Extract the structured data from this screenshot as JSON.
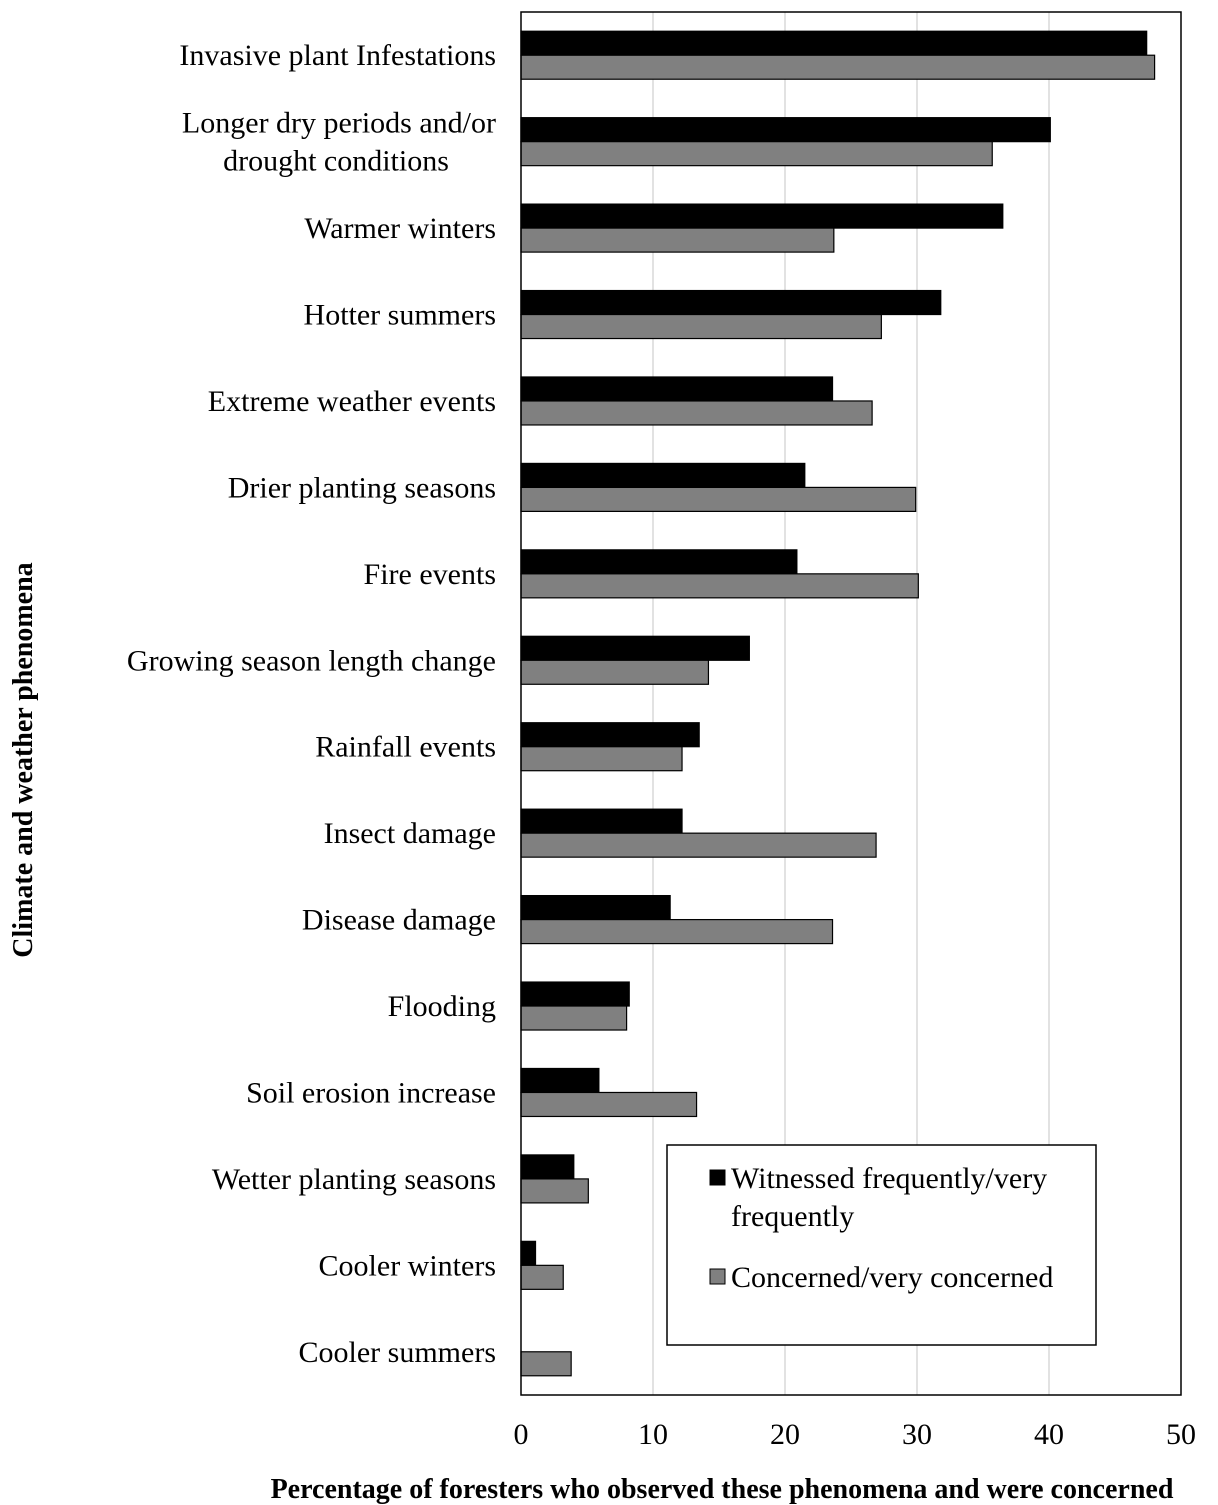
{
  "chart_data": {
    "type": "bar",
    "orientation": "horizontal",
    "title": "",
    "xlabel": "Percentage of foresters who observed these phenomena and were concerned",
    "ylabel": "Climate and weather phenomena",
    "xlim": [
      0,
      50
    ],
    "xticks": [
      0,
      10,
      20,
      30,
      40,
      50
    ],
    "grid": "vertical",
    "legend_position": "bottom-right",
    "categories": [
      [
        "Invasive plant Infestations"
      ],
      [
        "Longer dry periods and/or",
        "drought conditions"
      ],
      [
        "Warmer winters"
      ],
      [
        "Hotter summers"
      ],
      [
        "Extreme weather events"
      ],
      [
        "Drier planting seasons"
      ],
      [
        "Fire events"
      ],
      [
        "Growing season length change"
      ],
      [
        "Rainfall events"
      ],
      [
        "Insect damage"
      ],
      [
        "Disease damage"
      ],
      [
        "Flooding"
      ],
      [
        "Soil erosion increase"
      ],
      [
        "Wetter planting seasons"
      ],
      [
        "Cooler winters"
      ],
      [
        "Cooler summers"
      ]
    ],
    "series": [
      {
        "name": [
          "Witnessed frequently/very",
          "frequently"
        ],
        "color": "#000000",
        "values": [
          47.4,
          40.1,
          36.5,
          31.8,
          23.6,
          21.5,
          20.9,
          17.3,
          13.5,
          12.2,
          11.3,
          8.2,
          5.9,
          4.0,
          1.1,
          0
        ]
      },
      {
        "name": [
          "Concerned/very concerned"
        ],
        "color": "#808080",
        "values": [
          48.0,
          35.7,
          23.7,
          27.3,
          26.6,
          29.9,
          30.1,
          14.2,
          12.2,
          26.9,
          23.6,
          8.0,
          13.3,
          5.1,
          3.2,
          3.8
        ]
      }
    ]
  }
}
